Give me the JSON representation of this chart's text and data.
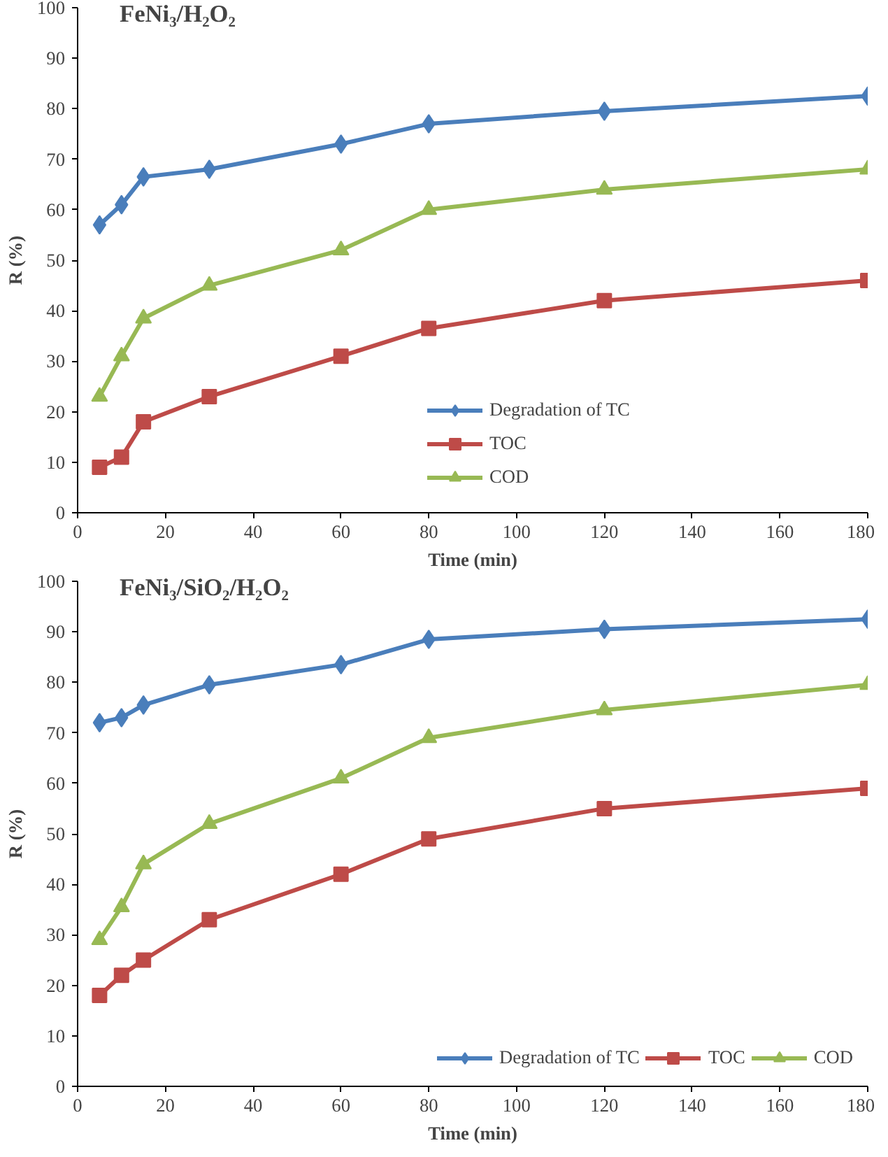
{
  "chart_data": [
    {
      "type": "line",
      "title": "FeNi₃/H₂O₂",
      "xlabel": "Time (min)",
      "ylabel": "R (%)",
      "xlim": [
        0,
        180
      ],
      "xticks": [
        0,
        20,
        40,
        60,
        80,
        100,
        120,
        140,
        160,
        180
      ],
      "ylim": [
        0,
        100
      ],
      "yticks": [
        0,
        10,
        20,
        30,
        40,
        50,
        60,
        70,
        80,
        90,
        100
      ],
      "grid": false,
      "legend": "right",
      "x": [
        5,
        10,
        15,
        30,
        60,
        80,
        120,
        180
      ],
      "series": [
        {
          "name": "Degradation of TC",
          "color": "#4a7ebb",
          "marker": "diamond",
          "values": [
            57,
            61,
            66.5,
            68,
            73,
            77,
            79.5,
            82.5
          ]
        },
        {
          "name": "TOC",
          "color": "#be4b48",
          "marker": "square",
          "values": [
            9,
            11,
            18,
            23,
            31,
            36.5,
            42,
            46
          ]
        },
        {
          "name": "COD",
          "color": "#98b954",
          "marker": "triangle",
          "values": [
            23,
            31,
            38.5,
            45,
            52,
            60,
            64,
            68
          ]
        }
      ]
    },
    {
      "type": "line",
      "title": "FeNi₃/SiO₂/H₂O₂",
      "xlabel": "Time (min)",
      "ylabel": "R (%)",
      "xlim": [
        0,
        180
      ],
      "xticks": [
        0,
        20,
        40,
        60,
        80,
        100,
        120,
        140,
        160,
        180
      ],
      "ylim": [
        0,
        100
      ],
      "yticks": [
        0,
        10,
        20,
        30,
        40,
        50,
        60,
        70,
        80,
        90,
        100
      ],
      "grid": false,
      "legend": "bottom right",
      "x": [
        5,
        10,
        15,
        30,
        60,
        80,
        120,
        180
      ],
      "series": [
        {
          "name": "Degradation of TC",
          "color": "#4a7ebb",
          "marker": "diamond",
          "values": [
            72,
            73,
            75.5,
            79.5,
            83.5,
            88.5,
            90.5,
            92.5
          ]
        },
        {
          "name": "TOC",
          "color": "#be4b48",
          "marker": "square",
          "values": [
            18,
            22,
            25,
            33,
            42,
            49,
            55,
            59
          ]
        },
        {
          "name": "COD",
          "color": "#98b954",
          "marker": "triangle",
          "values": [
            29,
            35.5,
            44,
            52,
            61,
            69,
            74.5,
            79.5
          ]
        }
      ]
    }
  ]
}
